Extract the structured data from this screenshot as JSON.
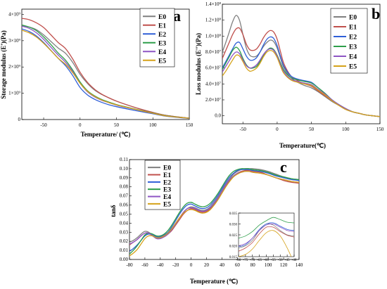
{
  "colors": {
    "E0": "#7f7f7f",
    "E1": "#c0504d",
    "E2": "#2f5fd7",
    "E3": "#2e9e4a",
    "E4": "#8e55c4",
    "E5": "#d5a21a"
  },
  "chart_data": [
    {
      "id": "a",
      "type": "line",
      "panel_label": "a",
      "title": "",
      "xlabel": "Temperature/ (℃)",
      "ylabel": "Storage modulus (E')(Pa)",
      "xlim": [
        -80,
        150
      ],
      "ylim": [
        0,
        4.2
      ],
      "x_ticks": [
        "-50",
        "0",
        "50",
        "100",
        "150"
      ],
      "x_tick_values": [
        -50,
        0,
        50,
        100,
        150
      ],
      "y_ticks": [
        "0",
        "1×10⁹",
        "2×10⁹",
        "3×10⁹",
        "4×10⁹"
      ],
      "y_tick_values": [
        0,
        1,
        2,
        3,
        4
      ],
      "y_unit_multiplier": 1000000000,
      "legend_position": "top-right",
      "x": [
        -80,
        -70,
        -60,
        -50,
        -40,
        -30,
        -20,
        -10,
        0,
        10,
        20,
        30,
        40,
        50,
        60,
        80,
        100,
        120,
        150
      ],
      "series": [
        {
          "name": "E0",
          "values": [
            3.58,
            3.52,
            3.42,
            3.22,
            2.97,
            2.72,
            2.52,
            2.17,
            1.72,
            1.38,
            1.12,
            0.95,
            0.82,
            0.7,
            0.6,
            0.42,
            0.27,
            0.15,
            0.05
          ]
        },
        {
          "name": "E1",
          "values": [
            3.85,
            3.8,
            3.68,
            3.5,
            3.22,
            2.93,
            2.7,
            2.3,
            1.8,
            1.42,
            1.15,
            0.96,
            0.82,
            0.7,
            0.6,
            0.42,
            0.27,
            0.15,
            0.05
          ]
        },
        {
          "name": "E2",
          "values": [
            3.45,
            3.35,
            3.18,
            2.93,
            2.63,
            2.33,
            2.05,
            1.67,
            1.22,
            0.94,
            0.77,
            0.65,
            0.56,
            0.49,
            0.43,
            0.32,
            0.22,
            0.12,
            0.04
          ]
        },
        {
          "name": "E3",
          "values": [
            3.6,
            3.52,
            3.38,
            3.14,
            2.85,
            2.53,
            2.26,
            1.88,
            1.43,
            1.1,
            0.9,
            0.76,
            0.66,
            0.57,
            0.5,
            0.37,
            0.25,
            0.14,
            0.05
          ]
        },
        {
          "name": "E4",
          "values": [
            3.55,
            3.47,
            3.3,
            3.05,
            2.75,
            2.45,
            2.18,
            1.82,
            1.38,
            1.06,
            0.86,
            0.73,
            0.64,
            0.55,
            0.48,
            0.36,
            0.24,
            0.13,
            0.05
          ]
        },
        {
          "name": "E5",
          "values": [
            3.4,
            3.3,
            3.14,
            2.9,
            2.62,
            2.33,
            2.1,
            1.78,
            1.38,
            1.08,
            0.88,
            0.74,
            0.64,
            0.56,
            0.49,
            0.36,
            0.24,
            0.13,
            0.05
          ]
        }
      ]
    },
    {
      "id": "b",
      "type": "line",
      "panel_label": "b",
      "title": "",
      "xlabel": "Temperature(℃)",
      "ylabel": "Loss modulus (E'')(Pa)",
      "xlim": [
        -80,
        150
      ],
      "ylim": [
        -0.1,
        1.4
      ],
      "x_ticks": [
        "-50",
        "0",
        "50",
        "100",
        "150"
      ],
      "x_tick_values": [
        -50,
        0,
        50,
        100,
        150
      ],
      "y_ticks": [
        "0.0",
        "2.0×10⁷",
        "4.0×10⁷",
        "6.0×10⁷",
        "8.0×10⁷",
        "1.0×10⁸",
        "1.2×10⁸",
        "1.4×10⁸"
      ],
      "y_tick_values": [
        0,
        0.2,
        0.4,
        0.6,
        0.8,
        1.0,
        1.2,
        1.4
      ],
      "y_unit_multiplier": 100000000,
      "legend_position": "top-right",
      "x": [
        -80,
        -75,
        -70,
        -65,
        -60,
        -55,
        -50,
        -45,
        -40,
        -35,
        -30,
        -25,
        -20,
        -15,
        -10,
        -5,
        0,
        5,
        10,
        20,
        30,
        40,
        50,
        60,
        70,
        80,
        90,
        100,
        110,
        120,
        130,
        140,
        150
      ],
      "series": [
        {
          "name": "E0",
          "values": [
            0.8,
            0.92,
            1.05,
            1.18,
            1.26,
            1.2,
            1.02,
            0.85,
            0.76,
            0.74,
            0.75,
            0.8,
            0.87,
            0.92,
            0.95,
            0.93,
            0.85,
            0.72,
            0.6,
            0.48,
            0.42,
            0.38,
            0.35,
            0.3,
            0.24,
            0.18,
            0.13,
            0.08,
            0.05,
            0.03,
            0.01,
            0.0,
            -0.01
          ]
        },
        {
          "name": "E1",
          "values": [
            0.72,
            0.82,
            0.92,
            1.02,
            1.09,
            1.1,
            1.02,
            0.9,
            0.83,
            0.82,
            0.84,
            0.9,
            0.98,
            1.04,
            1.07,
            1.05,
            0.96,
            0.8,
            0.65,
            0.5,
            0.44,
            0.4,
            0.37,
            0.31,
            0.25,
            0.19,
            0.14,
            0.09,
            0.05,
            0.03,
            0.01,
            0.0,
            -0.01
          ]
        },
        {
          "name": "E2",
          "values": [
            0.6,
            0.68,
            0.76,
            0.84,
            0.91,
            0.92,
            0.84,
            0.75,
            0.7,
            0.7,
            0.73,
            0.8,
            0.89,
            0.96,
            0.99,
            0.97,
            0.88,
            0.74,
            0.62,
            0.5,
            0.46,
            0.44,
            0.42,
            0.35,
            0.28,
            0.2,
            0.14,
            0.09,
            0.05,
            0.03,
            0.01,
            0.0,
            -0.01
          ]
        },
        {
          "name": "E3",
          "values": [
            0.58,
            0.66,
            0.74,
            0.82,
            0.86,
            0.82,
            0.72,
            0.64,
            0.6,
            0.6,
            0.62,
            0.68,
            0.76,
            0.82,
            0.85,
            0.83,
            0.76,
            0.66,
            0.57,
            0.48,
            0.45,
            0.43,
            0.41,
            0.35,
            0.28,
            0.2,
            0.14,
            0.09,
            0.05,
            0.03,
            0.01,
            0.0,
            -0.01
          ]
        },
        {
          "name": "E4",
          "values": [
            0.55,
            0.62,
            0.69,
            0.76,
            0.8,
            0.78,
            0.7,
            0.63,
            0.6,
            0.61,
            0.64,
            0.7,
            0.77,
            0.82,
            0.84,
            0.82,
            0.75,
            0.64,
            0.55,
            0.46,
            0.43,
            0.41,
            0.39,
            0.33,
            0.27,
            0.2,
            0.14,
            0.09,
            0.05,
            0.03,
            0.01,
            0.0,
            -0.01
          ]
        },
        {
          "name": "E5",
          "values": [
            0.5,
            0.56,
            0.63,
            0.7,
            0.76,
            0.75,
            0.68,
            0.6,
            0.56,
            0.57,
            0.6,
            0.66,
            0.74,
            0.8,
            0.82,
            0.8,
            0.73,
            0.62,
            0.53,
            0.45,
            0.42,
            0.4,
            0.38,
            0.32,
            0.26,
            0.19,
            0.13,
            0.08,
            0.05,
            0.03,
            0.01,
            0.0,
            -0.01
          ]
        }
      ]
    },
    {
      "id": "c",
      "type": "line",
      "panel_label": "c",
      "title": "",
      "xlabel": "Temperature (℃)",
      "ylabel": "tanδ",
      "xlim": [
        -80,
        140
      ],
      "ylim": [
        0.0,
        0.11
      ],
      "x_ticks": [
        "-80",
        "-60",
        "-40",
        "-20",
        "0",
        "20",
        "40",
        "60",
        "80",
        "100",
        "120",
        "140"
      ],
      "x_tick_values": [
        -80,
        -60,
        -40,
        -20,
        0,
        20,
        40,
        60,
        80,
        100,
        120,
        140
      ],
      "y_ticks": [
        "0.00",
        "0.01",
        "0.02",
        "0.03",
        "0.04",
        "0.05",
        "0.06",
        "0.07",
        "0.08",
        "0.09",
        "0.10",
        "0.11"
      ],
      "y_tick_values": [
        0,
        0.01,
        0.02,
        0.03,
        0.04,
        0.05,
        0.06,
        0.07,
        0.08,
        0.09,
        0.1,
        0.11
      ],
      "legend_position": "top-left",
      "x": [
        -80,
        -75,
        -70,
        -65,
        -60,
        -55,
        -50,
        -45,
        -40,
        -35,
        -30,
        -25,
        -20,
        -15,
        -10,
        -5,
        0,
        5,
        10,
        15,
        20,
        25,
        30,
        35,
        40,
        45,
        50,
        55,
        60,
        65,
        70,
        75,
        80,
        90,
        100,
        110,
        120,
        130,
        140
      ],
      "series": [
        {
          "name": "E0",
          "values": [
            0.019,
            0.021,
            0.024,
            0.028,
            0.031,
            0.03,
            0.026,
            0.024,
            0.024,
            0.026,
            0.029,
            0.034,
            0.04,
            0.046,
            0.052,
            0.056,
            0.058,
            0.057,
            0.055,
            0.054,
            0.055,
            0.058,
            0.063,
            0.069,
            0.076,
            0.083,
            0.089,
            0.094,
            0.097,
            0.099,
            0.1,
            0.1,
            0.1,
            0.099,
            0.097,
            0.094,
            0.091,
            0.089,
            0.088
          ]
        },
        {
          "name": "E1",
          "values": [
            0.016,
            0.019,
            0.022,
            0.026,
            0.029,
            0.029,
            0.026,
            0.024,
            0.024,
            0.025,
            0.028,
            0.032,
            0.038,
            0.044,
            0.05,
            0.054,
            0.056,
            0.055,
            0.053,
            0.052,
            0.053,
            0.056,
            0.061,
            0.067,
            0.074,
            0.081,
            0.087,
            0.092,
            0.095,
            0.097,
            0.098,
            0.098,
            0.097,
            0.096,
            0.093,
            0.09,
            0.087,
            0.085,
            0.084
          ]
        },
        {
          "name": "E2",
          "values": [
            0.009,
            0.012,
            0.016,
            0.021,
            0.026,
            0.028,
            0.027,
            0.025,
            0.025,
            0.027,
            0.03,
            0.036,
            0.043,
            0.05,
            0.056,
            0.06,
            0.061,
            0.059,
            0.057,
            0.056,
            0.057,
            0.06,
            0.065,
            0.071,
            0.078,
            0.085,
            0.091,
            0.095,
            0.098,
            0.099,
            0.099,
            0.099,
            0.098,
            0.097,
            0.095,
            0.092,
            0.09,
            0.088,
            0.087
          ]
        },
        {
          "name": "E3",
          "values": [
            0.006,
            0.01,
            0.015,
            0.021,
            0.027,
            0.029,
            0.028,
            0.026,
            0.026,
            0.028,
            0.032,
            0.038,
            0.045,
            0.052,
            0.058,
            0.062,
            0.063,
            0.061,
            0.059,
            0.058,
            0.059,
            0.062,
            0.067,
            0.073,
            0.08,
            0.087,
            0.093,
            0.097,
            0.099,
            0.1,
            0.1,
            0.1,
            0.099,
            0.098,
            0.096,
            0.093,
            0.091,
            0.089,
            0.088
          ]
        },
        {
          "name": "E4",
          "values": [
            0.017,
            0.019,
            0.022,
            0.026,
            0.029,
            0.029,
            0.026,
            0.023,
            0.023,
            0.025,
            0.028,
            0.033,
            0.039,
            0.046,
            0.052,
            0.056,
            0.057,
            0.056,
            0.054,
            0.053,
            0.054,
            0.057,
            0.062,
            0.068,
            0.075,
            0.082,
            0.088,
            0.092,
            0.095,
            0.096,
            0.097,
            0.097,
            0.096,
            0.095,
            0.093,
            0.09,
            0.088,
            0.086,
            0.085
          ]
        },
        {
          "name": "E5",
          "values": [
            0.004,
            0.007,
            0.011,
            0.017,
            0.023,
            0.026,
            0.026,
            0.024,
            0.024,
            0.026,
            0.029,
            0.034,
            0.04,
            0.046,
            0.051,
            0.054,
            0.055,
            0.054,
            0.052,
            0.051,
            0.052,
            0.055,
            0.06,
            0.066,
            0.073,
            0.08,
            0.086,
            0.091,
            0.094,
            0.096,
            0.097,
            0.097,
            0.096,
            0.095,
            0.093,
            0.09,
            0.088,
            0.086,
            0.085
          ]
        }
      ]
    },
    {
      "id": "c-inset",
      "type": "line",
      "title": "",
      "xlabel": "",
      "ylabel": "",
      "xlim": [
        -80,
        -40
      ],
      "ylim": [
        0.015,
        0.035
      ],
      "x_ticks": [
        "-80",
        "-75",
        "-70",
        "-65",
        "-60",
        "-55",
        "-50",
        "-45",
        "-40"
      ],
      "x_tick_values": [
        -80,
        -75,
        -70,
        -65,
        -60,
        -55,
        -50,
        -45,
        -40
      ],
      "y_ticks": [
        "0.015",
        "0.020",
        "0.025",
        "0.030",
        "0.035"
      ],
      "y_tick_values": [
        0.015,
        0.02,
        0.025,
        0.03,
        0.035
      ],
      "x": [
        -80,
        -75,
        -70,
        -65,
        -60,
        -55,
        -50,
        -45,
        -40
      ],
      "series": [
        {
          "name": "E0",
          "values": [
            0.019,
            0.02,
            0.0225,
            0.027,
            0.03,
            0.0295,
            0.027,
            0.025,
            0.0245
          ]
        },
        {
          "name": "E1",
          "values": [
            0.0175,
            0.019,
            0.0215,
            0.0255,
            0.0285,
            0.0285,
            0.0265,
            0.0248,
            0.024
          ]
        },
        {
          "name": "E2",
          "values": [
            0.0195,
            0.0205,
            0.0235,
            0.0275,
            0.03,
            0.0305,
            0.029,
            0.0275,
            0.027
          ]
        },
        {
          "name": "E3",
          "values": [
            0.0235,
            0.0245,
            0.0265,
            0.0295,
            0.0315,
            0.033,
            0.032,
            0.0308,
            0.0305
          ]
        },
        {
          "name": "E4",
          "values": [
            0.02,
            0.021,
            0.0235,
            0.027,
            0.0295,
            0.03,
            0.0285,
            0.027,
            0.0265
          ]
        },
        {
          "name": "E5",
          "values": [
            0.015,
            0.016,
            0.0185,
            0.0225,
            0.026,
            0.027,
            0.0245,
            0.019,
            0.012
          ]
        }
      ]
    }
  ]
}
